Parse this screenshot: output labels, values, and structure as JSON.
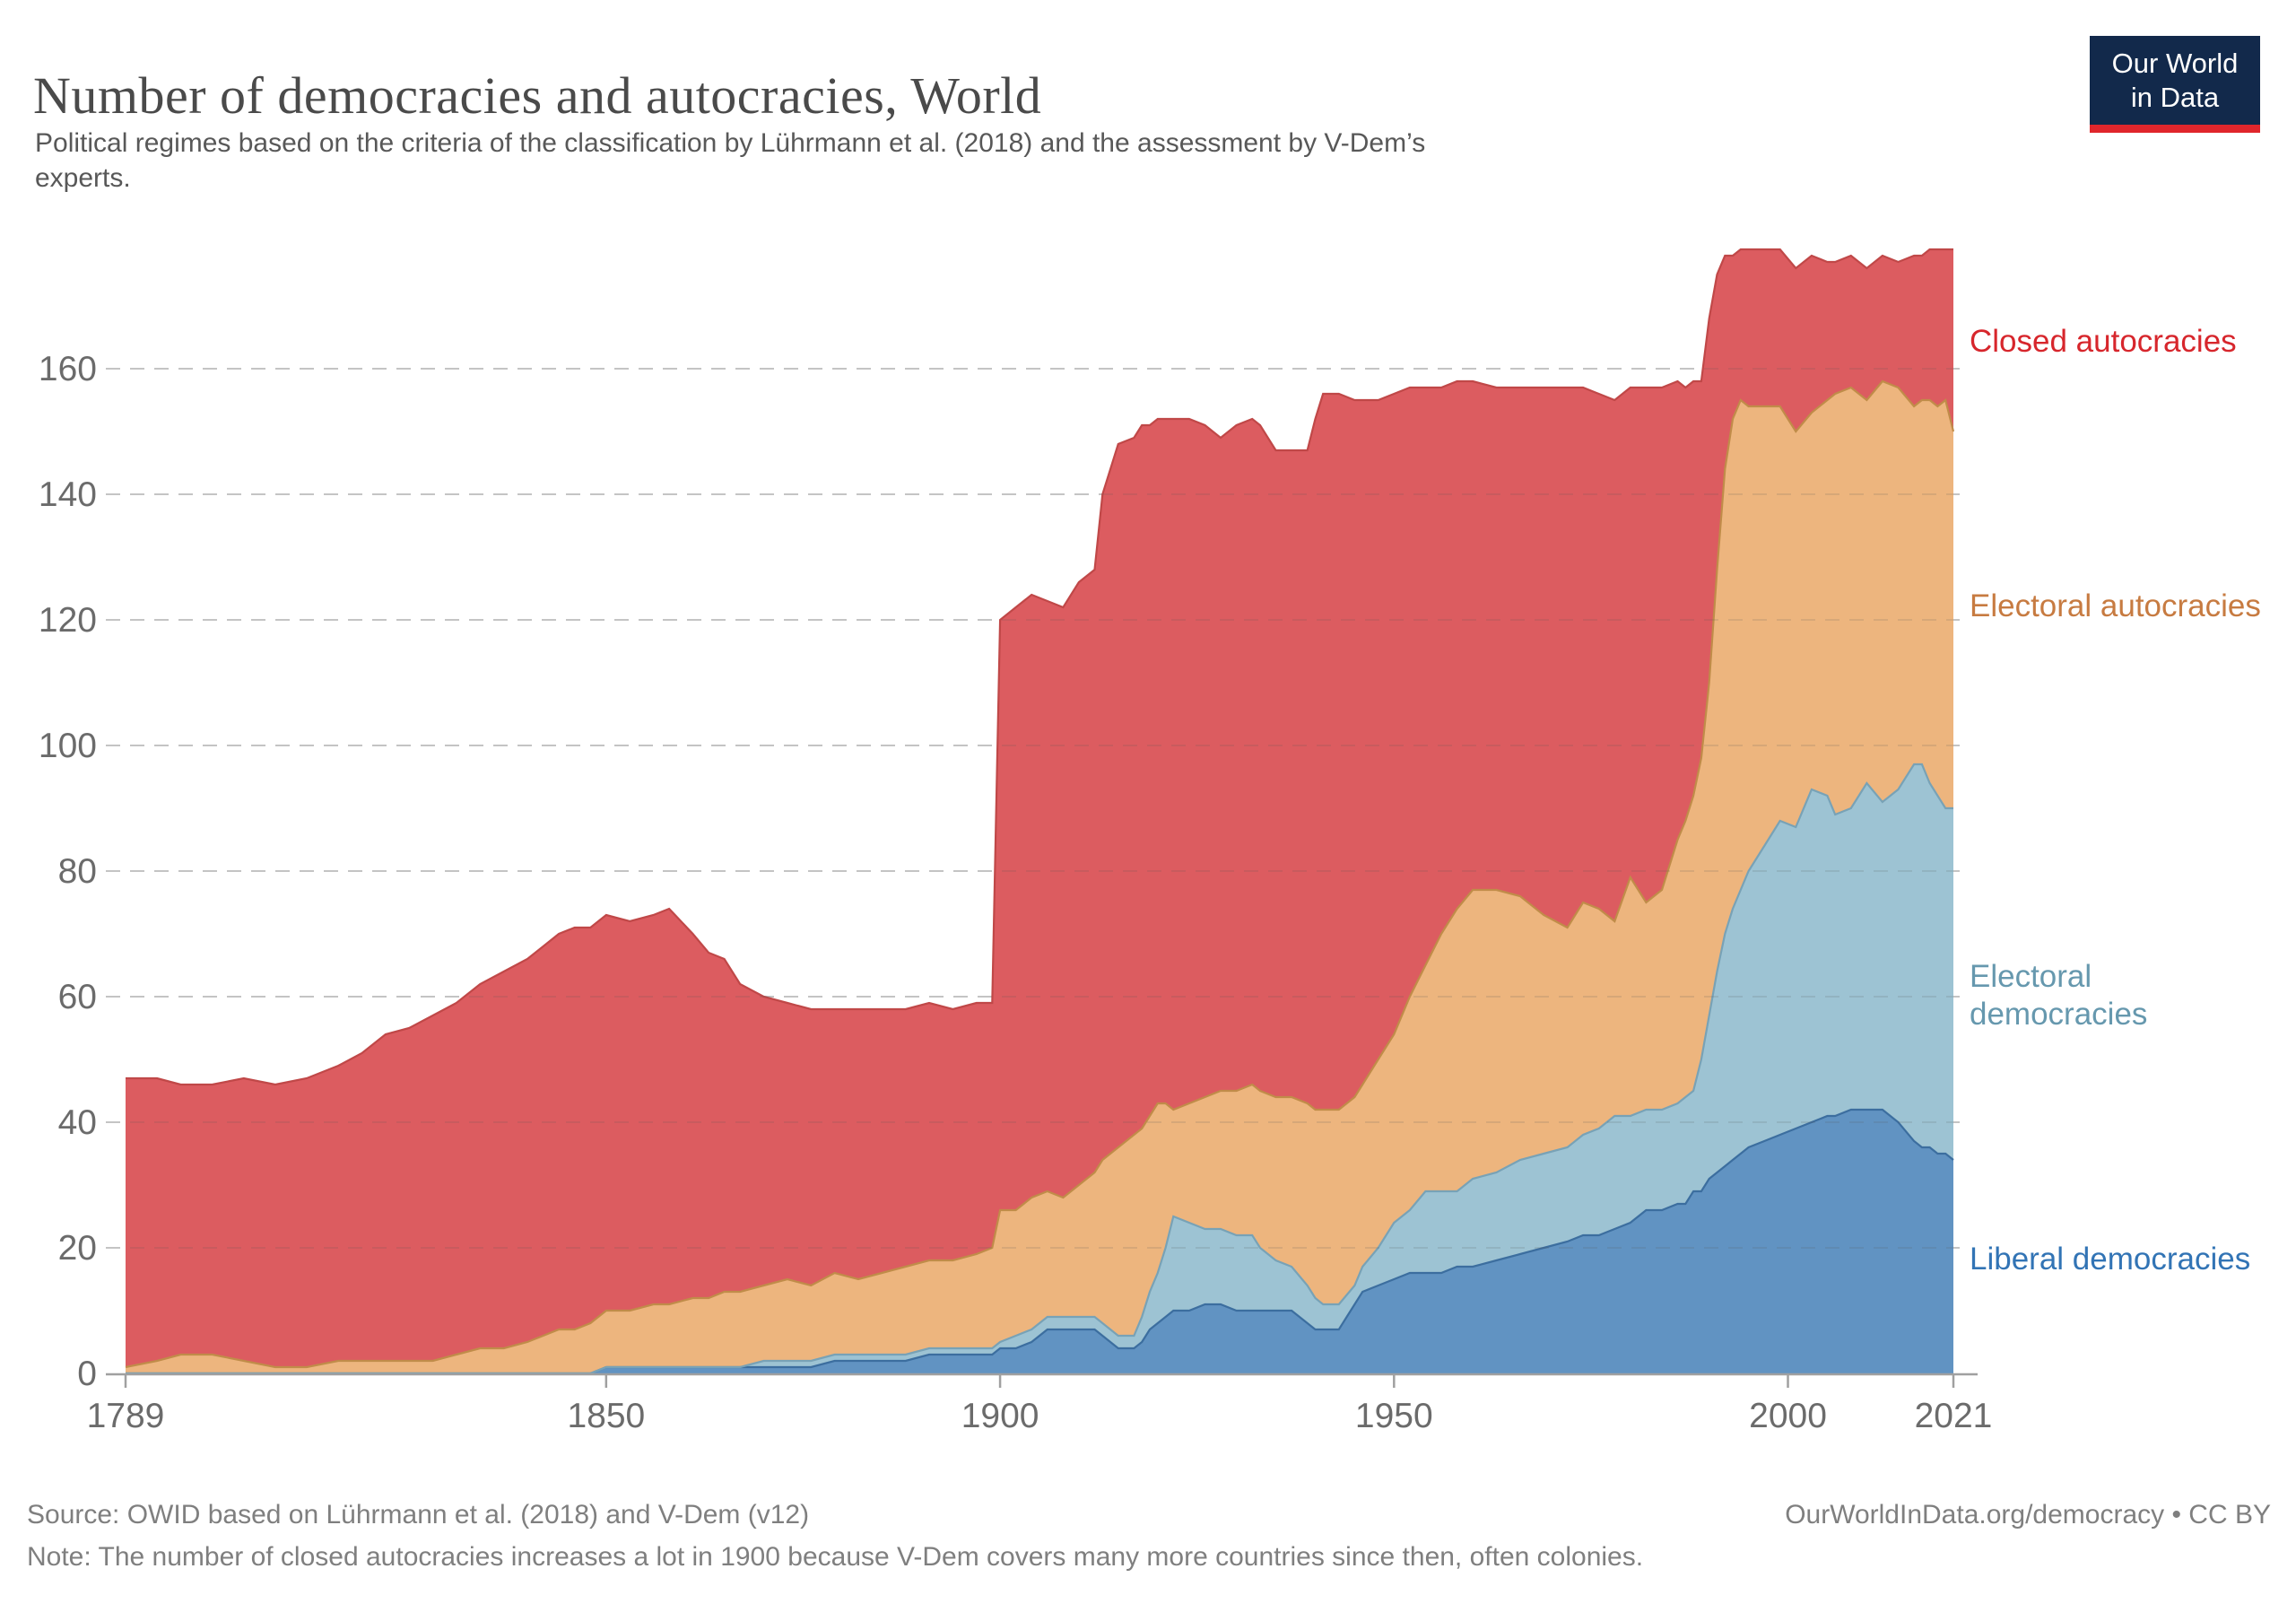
{
  "header": {
    "title": "Number of democracies and autocracies, World",
    "subtitle": "Political regimes based on the criteria of the classification by Lührmann et al. (2018) and the assessment by V-Dem’s experts."
  },
  "logo": {
    "line1": "Our World",
    "line2": "in Data"
  },
  "chart_data": {
    "type": "area",
    "stacked": true,
    "title": "Number of democracies and autocracies, World",
    "xlabel": "",
    "ylabel": "",
    "xlim": [
      1789,
      2021
    ],
    "ylim": [
      0,
      180
    ],
    "x_ticks": [
      1789,
      1850,
      1900,
      1950,
      2000,
      2021
    ],
    "y_ticks": [
      0,
      20,
      40,
      60,
      80,
      100,
      120,
      140,
      160
    ],
    "grid": "dashed",
    "legend_position": "right",
    "years": [
      1789,
      1793,
      1796,
      1800,
      1804,
      1808,
      1812,
      1816,
      1819,
      1822,
      1825,
      1828,
      1831,
      1834,
      1837,
      1840,
      1842,
      1844,
      1846,
      1848,
      1850,
      1853,
      1856,
      1858,
      1861,
      1863,
      1865,
      1867,
      1870,
      1873,
      1876,
      1879,
      1882,
      1885,
      1888,
      1891,
      1894,
      1897,
      1899,
      1900,
      1902,
      1904,
      1906,
      1908,
      1910,
      1912,
      1913,
      1915,
      1917,
      1918,
      1919,
      1920,
      1921,
      1922,
      1924,
      1926,
      1928,
      1930,
      1932,
      1933,
      1935,
      1937,
      1939,
      1940,
      1941,
      1943,
      1945,
      1946,
      1948,
      1950,
      1952,
      1954,
      1956,
      1958,
      1960,
      1963,
      1966,
      1969,
      1972,
      1974,
      1976,
      1978,
      1980,
      1982,
      1984,
      1986,
      1987,
      1988,
      1989,
      1990,
      1991,
      1992,
      1993,
      1994,
      1995,
      1997,
      1999,
      2001,
      2003,
      2005,
      2006,
      2008,
      2010,
      2012,
      2014,
      2016,
      2017,
      2018,
      2019,
      2020,
      2021
    ],
    "series": [
      {
        "name": "Liberal democracies",
        "color": "#6193C2",
        "line_color": "#3C6E9F",
        "label_color": "#3274B5",
        "values": [
          0,
          0,
          0,
          0,
          0,
          0,
          0,
          0,
          0,
          0,
          0,
          0,
          0,
          0,
          0,
          0,
          0,
          0,
          0,
          0,
          1,
          1,
          1,
          1,
          1,
          1,
          1,
          1,
          1,
          1,
          1,
          2,
          2,
          2,
          2,
          3,
          3,
          3,
          3,
          4,
          4,
          5,
          7,
          7,
          7,
          7,
          6,
          4,
          4,
          5,
          7,
          8,
          9,
          10,
          10,
          11,
          11,
          10,
          10,
          10,
          10,
          10,
          8,
          7,
          7,
          7,
          11,
          13,
          14,
          15,
          16,
          16,
          16,
          17,
          17,
          18,
          19,
          20,
          21,
          22,
          22,
          23,
          24,
          26,
          26,
          27,
          27,
          29,
          29,
          31,
          32,
          33,
          34,
          35,
          36,
          37,
          38,
          39,
          40,
          41,
          41,
          42,
          42,
          42,
          40,
          37,
          36,
          36,
          35,
          35,
          34
        ]
      },
      {
        "name": "Electoral democracies",
        "color": "#9DC3D3",
        "line_color": "#78A2B6",
        "label_color": "#6698AE",
        "values": [
          0,
          0,
          0,
          0,
          0,
          0,
          0,
          0,
          0,
          0,
          0,
          0,
          0,
          0,
          0,
          0,
          0,
          0,
          0,
          0,
          0,
          0,
          0,
          0,
          0,
          0,
          0,
          0,
          1,
          1,
          1,
          1,
          1,
          1,
          1,
          1,
          1,
          1,
          1,
          1,
          2,
          2,
          2,
          2,
          2,
          2,
          2,
          2,
          2,
          4,
          6,
          8,
          11,
          15,
          14,
          12,
          12,
          12,
          12,
          10,
          8,
          7,
          6,
          5,
          4,
          4,
          3,
          4,
          6,
          9,
          10,
          13,
          13,
          12,
          14,
          14,
          15,
          15,
          15,
          16,
          17,
          18,
          17,
          16,
          16,
          16,
          17,
          16,
          21,
          26,
          32,
          37,
          40,
          42,
          44,
          47,
          50,
          48,
          53,
          51,
          48,
          48,
          52,
          49,
          53,
          60,
          61,
          58,
          57,
          55,
          56
        ]
      },
      {
        "name": "Electoral autocracies",
        "color": "#EDB57E",
        "line_color": "#C08C49",
        "label_color": "#C77B41",
        "values": [
          1,
          2,
          3,
          3,
          2,
          1,
          1,
          2,
          2,
          2,
          2,
          2,
          3,
          4,
          4,
          5,
          6,
          7,
          7,
          8,
          9,
          9,
          10,
          10,
          11,
          11,
          12,
          12,
          12,
          13,
          12,
          13,
          12,
          13,
          14,
          14,
          14,
          15,
          16,
          21,
          20,
          21,
          20,
          19,
          21,
          23,
          26,
          30,
          32,
          30,
          28,
          27,
          23,
          17,
          19,
          21,
          22,
          23,
          24,
          25,
          26,
          27,
          29,
          30,
          31,
          31,
          30,
          29,
          30,
          30,
          34,
          36,
          41,
          45,
          46,
          45,
          42,
          38,
          35,
          37,
          35,
          31,
          38,
          33,
          35,
          42,
          44,
          47,
          48,
          53,
          64,
          74,
          78,
          78,
          74,
          70,
          66,
          63,
          60,
          63,
          67,
          67,
          61,
          67,
          64,
          57,
          58,
          61,
          62,
          65,
          60
        ]
      },
      {
        "name": "Closed autocracies",
        "color": "#DC5C60",
        "line_color": "#C04848",
        "label_color": "#D7262C",
        "values": [
          46,
          45,
          43,
          43,
          45,
          45,
          46,
          47,
          49,
          52,
          53,
          55,
          56,
          58,
          60,
          61,
          62,
          63,
          64,
          63,
          63,
          62,
          62,
          63,
          58,
          55,
          53,
          49,
          46,
          44,
          44,
          42,
          43,
          42,
          41,
          41,
          40,
          40,
          39,
          94,
          96,
          96,
          94,
          94,
          96,
          96,
          106,
          112,
          111,
          112,
          110,
          109,
          109,
          110,
          109,
          107,
          104,
          106,
          106,
          106,
          103,
          103,
          104,
          110,
          114,
          114,
          111,
          109,
          105,
          102,
          97,
          92,
          87,
          84,
          81,
          80,
          81,
          84,
          86,
          82,
          82,
          83,
          78,
          82,
          80,
          73,
          69,
          66,
          60,
          58,
          47,
          34,
          26,
          24,
          25,
          25,
          25,
          26,
          25,
          22,
          21,
          21,
          21,
          20,
          20,
          24,
          23,
          24,
          25,
          24,
          29
        ]
      }
    ]
  },
  "footer": {
    "source": "Source: OWID based on Lührmann et al. (2018) and V-Dem (v12)",
    "note": "Note: The number of closed autocracies increases a lot in 1900 because V-Dem covers many more countries since then, often colonies.",
    "link": "OurWorldInData.org/democracy • CC BY"
  }
}
